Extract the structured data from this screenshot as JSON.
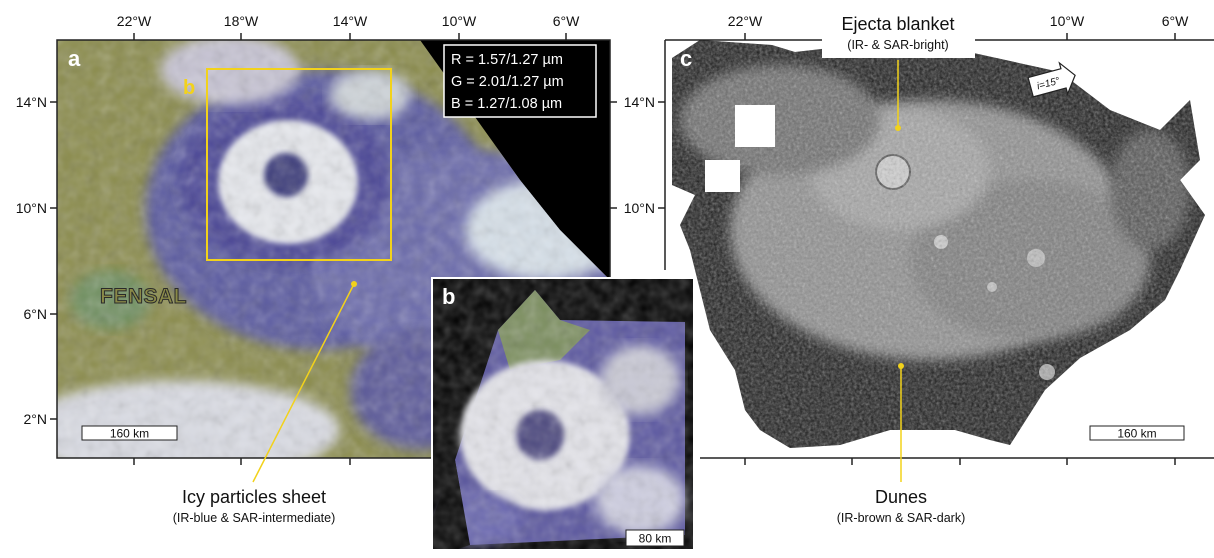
{
  "panel_a": {
    "letter": "a",
    "lon_ticks": [
      "22°W",
      "18°W",
      "14°W",
      "10°W",
      "6°W"
    ],
    "lat_ticks": [
      "14°N",
      "10°N",
      "6°N",
      "2°N"
    ],
    "rgb_legend": [
      "R = 1.57/1.27 µm",
      "G = 2.01/1.27 µm",
      "B = 1.27/1.08 µm"
    ],
    "inset_label": "b",
    "region_label": "FENSAL",
    "scale_bar": "160 km"
  },
  "panel_b": {
    "letter": "b",
    "scale_bar": "80 km"
  },
  "panel_c": {
    "letter": "c",
    "lon_ticks": [
      "22°W",
      "10°W",
      "6°W"
    ],
    "incidence_label": "i=15°",
    "scale_bar": "160 km"
  },
  "annotations": {
    "ejecta": {
      "title": "Ejecta blanket",
      "subtitle": "(IR- & SAR-bright)"
    },
    "icy": {
      "title": "Icy particles sheet",
      "subtitle": "(IR-blue & SAR-intermediate)"
    },
    "dunes": {
      "title": "Dunes",
      "subtitle": "(IR-brown & SAR-dark)"
    }
  },
  "colors": {
    "callout_yellow": "#f2d21b",
    "ir_greenbrown": "#8a8a48",
    "ir_blue": "#4a4496",
    "ir_white": "#e6e9ee",
    "sar_background": "#111111"
  }
}
